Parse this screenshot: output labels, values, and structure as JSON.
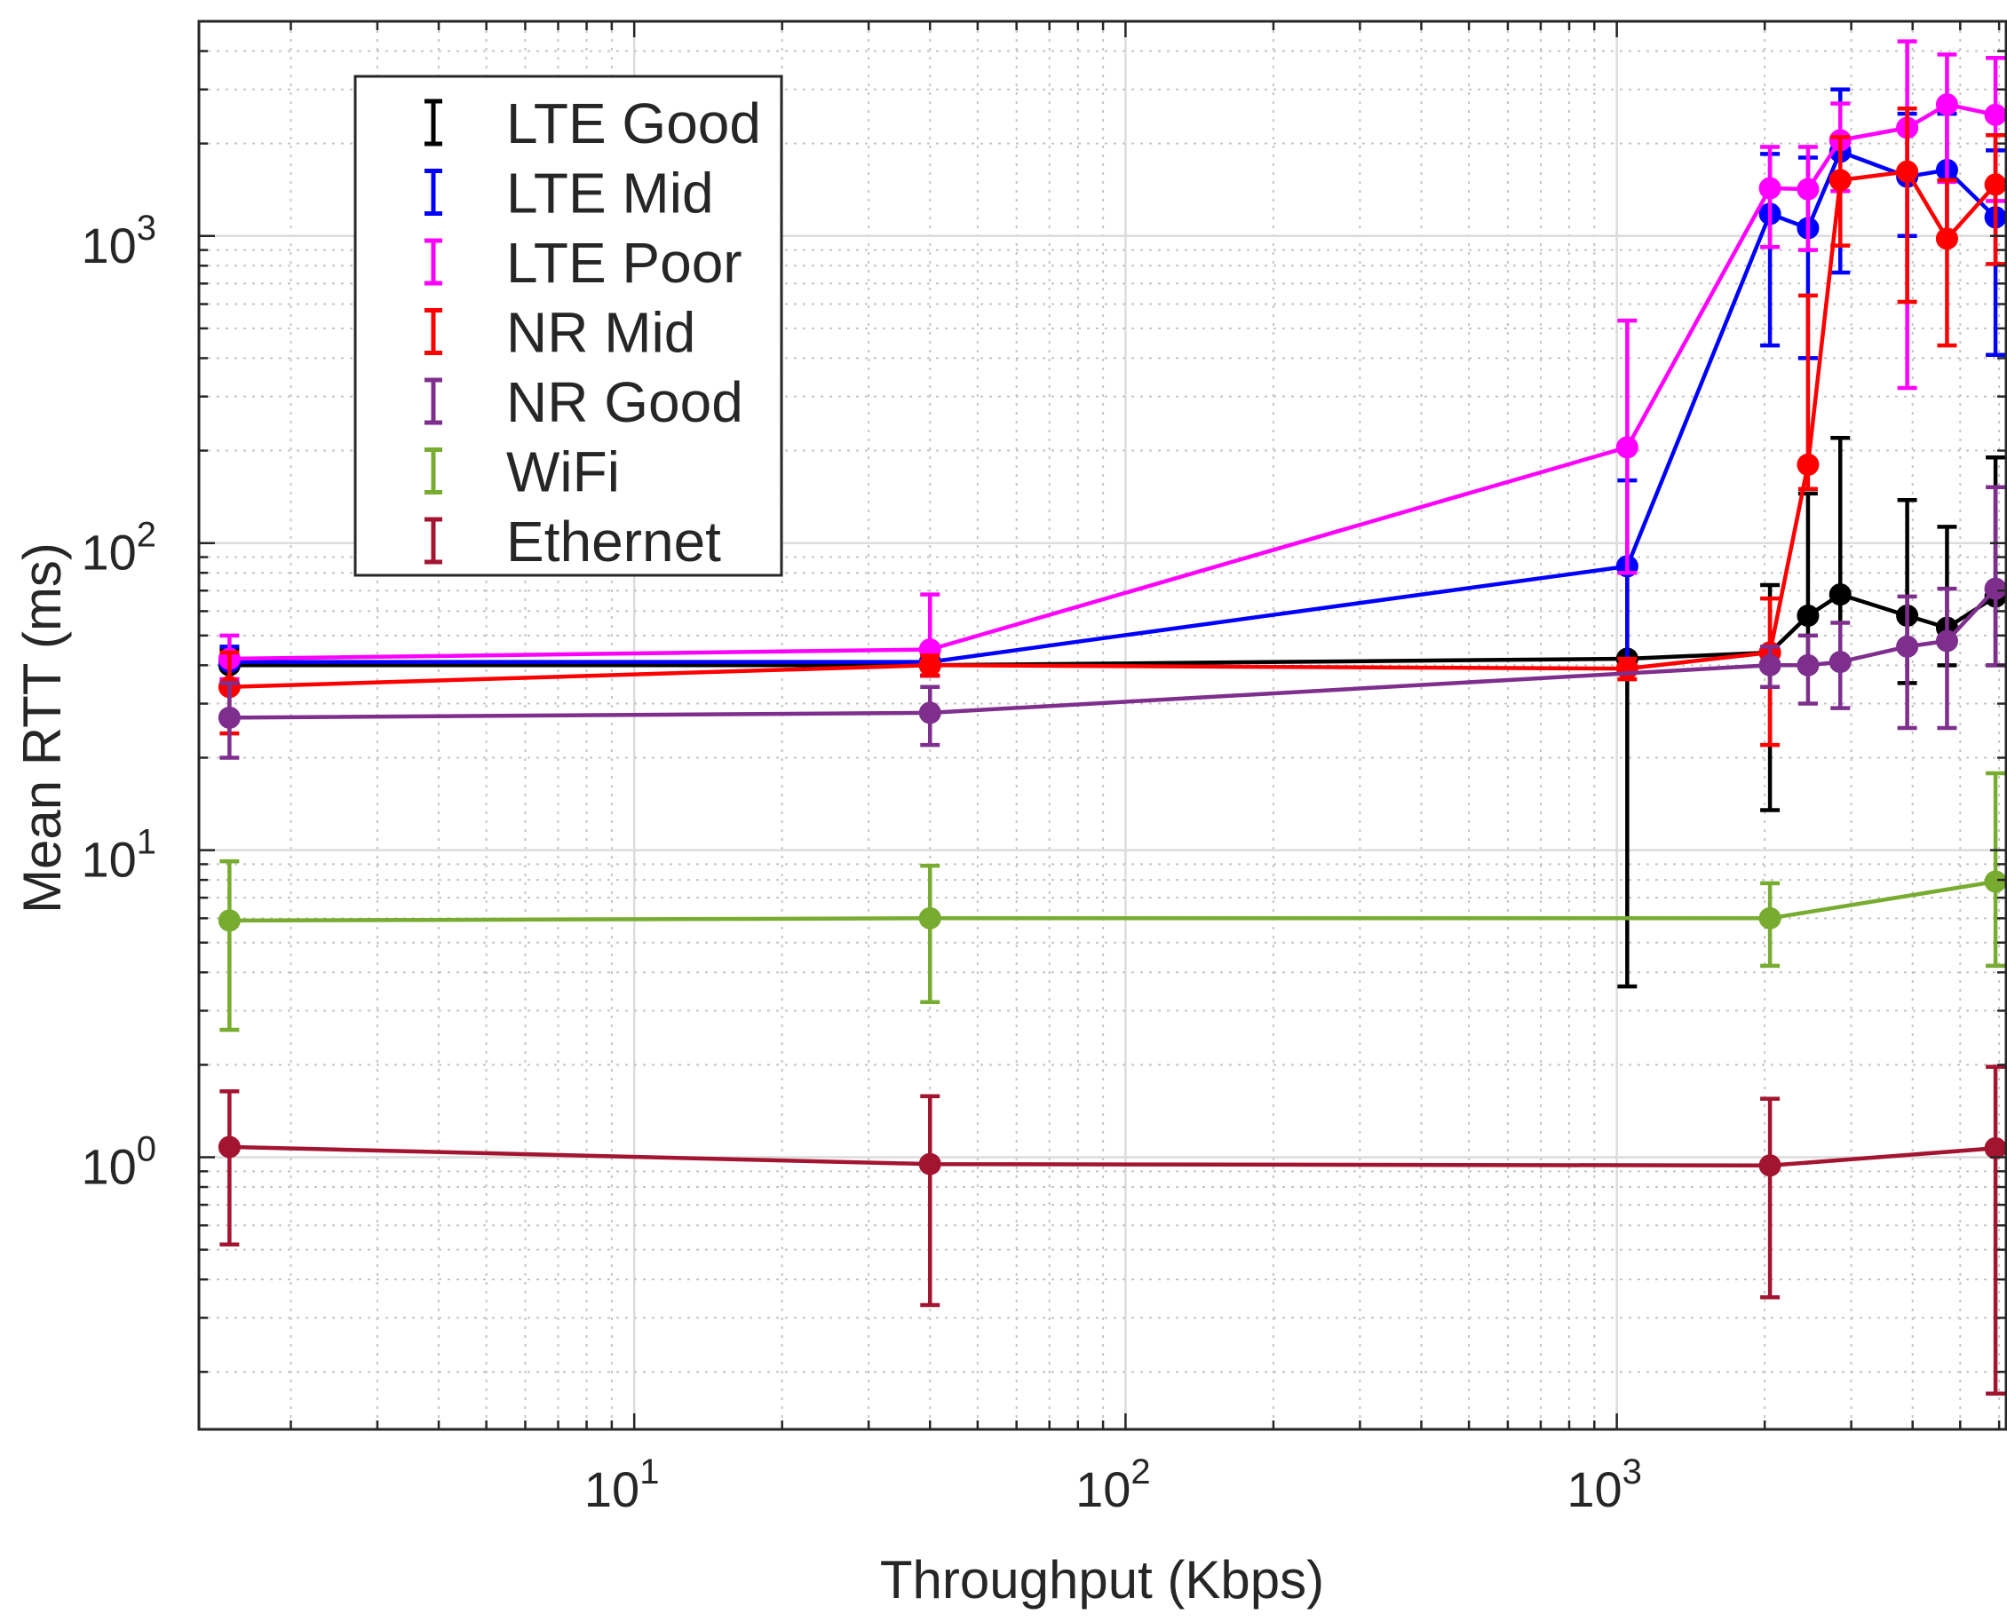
{
  "chart_data": {
    "type": "line",
    "title": "",
    "xlabel": "Throughput (Kbps)",
    "ylabel": "Mean RTT (ms)",
    "x_scale": "log",
    "y_scale": "log",
    "xlim": [
      1.3,
      6200
    ],
    "ylim": [
      0.13,
      5000
    ],
    "grid": true,
    "legend_position": "top-left",
    "x_ticks": [
      {
        "value": 10,
        "base": "10",
        "exp": "1"
      },
      {
        "value": 100,
        "base": "10",
        "exp": "2"
      },
      {
        "value": 1000,
        "base": "10",
        "exp": "3"
      }
    ],
    "y_ticks": [
      {
        "value": 1,
        "base": "10",
        "exp": "0"
      },
      {
        "value": 10,
        "base": "10",
        "exp": "1"
      },
      {
        "value": 100,
        "base": "10",
        "exp": "2"
      },
      {
        "value": 1000,
        "base": "10",
        "exp": "3"
      }
    ],
    "series": [
      {
        "name": "LTE Good",
        "color": "#000000",
        "points": [
          {
            "x": 1.5,
            "y": 40,
            "lo": 35,
            "hi": 45
          },
          {
            "x": 40,
            "y": 40,
            "lo": 37,
            "hi": 43
          },
          {
            "x": 1050,
            "y": 42,
            "lo": 3.6,
            "hi": 80
          },
          {
            "x": 2050,
            "y": 44,
            "lo": 13.5,
            "hi": 73
          },
          {
            "x": 2450,
            "y": 58,
            "lo": 40,
            "hi": 145
          },
          {
            "x": 2850,
            "y": 68,
            "lo": 40,
            "hi": 220
          },
          {
            "x": 3900,
            "y": 58,
            "lo": 35,
            "hi": 138
          },
          {
            "x": 4700,
            "y": 53,
            "lo": 40,
            "hi": 113
          },
          {
            "x": 5900,
            "y": 67,
            "lo": 40,
            "hi": 190
          }
        ]
      },
      {
        "name": "LTE Mid",
        "color": "#0000ff",
        "points": [
          {
            "x": 1.5,
            "y": 41,
            "lo": 36,
            "hi": 46
          },
          {
            "x": 40,
            "y": 41,
            "lo": 37,
            "hi": 45
          },
          {
            "x": 1050,
            "y": 84,
            "lo": 40,
            "hi": 160
          },
          {
            "x": 2050,
            "y": 1180,
            "lo": 440,
            "hi": 1850
          },
          {
            "x": 2450,
            "y": 1060,
            "lo": 400,
            "hi": 1800
          },
          {
            "x": 2850,
            "y": 1880,
            "lo": 760,
            "hi": 3000
          },
          {
            "x": 3900,
            "y": 1560,
            "lo": 1000,
            "hi": 2500
          },
          {
            "x": 4700,
            "y": 1640,
            "lo": 1000,
            "hi": 2500
          },
          {
            "x": 5900,
            "y": 1150,
            "lo": 410,
            "hi": 1900
          }
        ]
      },
      {
        "name": "LTE Poor",
        "color": "#ff00ff",
        "points": [
          {
            "x": 1.5,
            "y": 42,
            "lo": 36,
            "hi": 50
          },
          {
            "x": 40,
            "y": 45,
            "lo": 37,
            "hi": 68
          },
          {
            "x": 1050,
            "y": 205,
            "lo": 80,
            "hi": 530
          },
          {
            "x": 2050,
            "y": 1430,
            "lo": 920,
            "hi": 1950
          },
          {
            "x": 2450,
            "y": 1420,
            "lo": 900,
            "hi": 1950
          },
          {
            "x": 2850,
            "y": 2050,
            "lo": 1400,
            "hi": 2700
          },
          {
            "x": 3900,
            "y": 2250,
            "lo": 320,
            "hi": 4300
          },
          {
            "x": 4700,
            "y": 2680,
            "lo": 1500,
            "hi": 3900
          },
          {
            "x": 5900,
            "y": 2480,
            "lo": 1300,
            "hi": 3800
          }
        ]
      },
      {
        "name": "NR Mid",
        "color": "#ff0000",
        "points": [
          {
            "x": 1.5,
            "y": 34,
            "lo": 24,
            "hi": 44
          },
          {
            "x": 40,
            "y": 40,
            "lo": 37,
            "hi": 43
          },
          {
            "x": 1050,
            "y": 39,
            "lo": 36,
            "hi": 42
          },
          {
            "x": 2050,
            "y": 44,
            "lo": 22,
            "hi": 66
          },
          {
            "x": 2450,
            "y": 180,
            "lo": 150,
            "hi": 640
          },
          {
            "x": 2850,
            "y": 1520,
            "lo": 930,
            "hi": 2100
          },
          {
            "x": 3900,
            "y": 1620,
            "lo": 610,
            "hi": 2600
          },
          {
            "x": 4700,
            "y": 980,
            "lo": 440,
            "hi": 1520
          },
          {
            "x": 5900,
            "y": 1470,
            "lo": 810,
            "hi": 2130
          }
        ]
      },
      {
        "name": "NR Good",
        "color": "#7e2f8e",
        "points": [
          {
            "x": 1.5,
            "y": 27,
            "lo": 20,
            "hi": 35
          },
          {
            "x": 40,
            "y": 28,
            "lo": 22,
            "hi": 34
          },
          {
            "x": 2050,
            "y": 40,
            "lo": 34,
            "hi": 46
          },
          {
            "x": 2450,
            "y": 40,
            "lo": 30,
            "hi": 50
          },
          {
            "x": 2850,
            "y": 41,
            "lo": 29,
            "hi": 55
          },
          {
            "x": 3900,
            "y": 46,
            "lo": 25,
            "hi": 67
          },
          {
            "x": 4700,
            "y": 48,
            "lo": 25,
            "hi": 71
          },
          {
            "x": 5900,
            "y": 71,
            "lo": 40,
            "hi": 152
          }
        ]
      },
      {
        "name": "WiFi",
        "color": "#77ac30",
        "points": [
          {
            "x": 1.5,
            "y": 5.9,
            "lo": 2.6,
            "hi": 9.2
          },
          {
            "x": 40,
            "y": 6.0,
            "lo": 3.2,
            "hi": 8.9
          },
          {
            "x": 2050,
            "y": 6.0,
            "lo": 4.2,
            "hi": 7.8
          },
          {
            "x": 5900,
            "y": 7.9,
            "lo": 4.2,
            "hi": 17.8
          }
        ]
      },
      {
        "name": "Ethernet",
        "color": "#a2142f",
        "points": [
          {
            "x": 1.5,
            "y": 1.08,
            "lo": 0.52,
            "hi": 1.64
          },
          {
            "x": 40,
            "y": 0.95,
            "lo": 0.33,
            "hi": 1.58
          },
          {
            "x": 2050,
            "y": 0.94,
            "lo": 0.35,
            "hi": 1.55
          },
          {
            "x": 5900,
            "y": 1.07,
            "lo": 0.17,
            "hi": 1.97
          }
        ]
      }
    ]
  }
}
